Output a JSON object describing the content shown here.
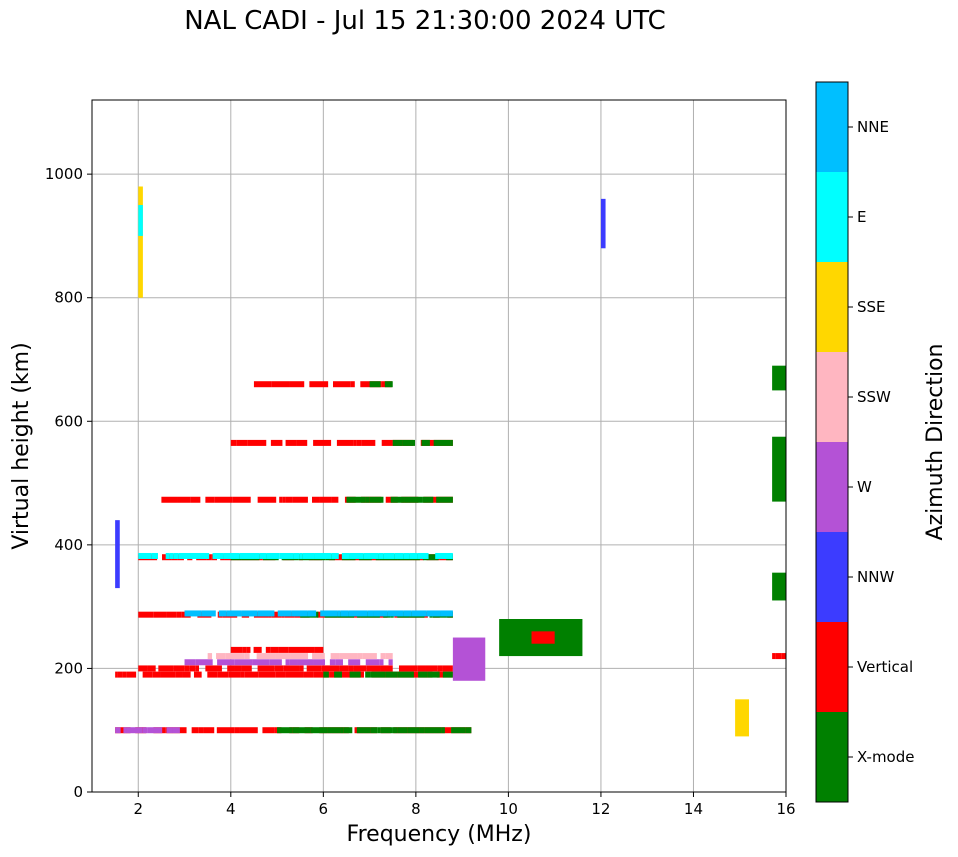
{
  "title": "NAL CADI - Jul 15 21:30:00 2024 UTC",
  "chart_data": {
    "type": "scatter",
    "title": "NAL CADI - Jul 15 21:30:00 2024 UTC",
    "xlabel": "Frequency (MHz)",
    "ylabel": "Virtual height (km)",
    "xlim": [
      1,
      16
    ],
    "ylim": [
      0,
      1120
    ],
    "xticks": [
      2,
      4,
      6,
      8,
      10,
      12,
      14,
      16
    ],
    "yticks": [
      0,
      200,
      400,
      600,
      800,
      1000
    ],
    "grid": true,
    "colorbar": {
      "label": "Azimuth Direction",
      "categories": [
        {
          "name": "X-mode",
          "color": "#008000"
        },
        {
          "name": "Vertical",
          "color": "#ff0000"
        },
        {
          "name": "NNW",
          "color": "#3c3cff"
        },
        {
          "name": "W",
          "color": "#b452d6"
        },
        {
          "name": "SSW",
          "color": "#ffb6c1"
        },
        {
          "name": "SSE",
          "color": "#ffd700"
        },
        {
          "name": "E",
          "color": "#00ffff"
        },
        {
          "name": "NNE",
          "color": "#00bfff"
        }
      ]
    },
    "segments": [
      {
        "x0": 1.5,
        "x1": 9.2,
        "y": 100,
        "cat": "Vertical"
      },
      {
        "x0": 5.0,
        "x1": 9.2,
        "y": 100,
        "cat": "X-mode"
      },
      {
        "x0": 1.5,
        "x1": 2.9,
        "y": 100,
        "cat": "W"
      },
      {
        "x0": 1.5,
        "x1": 8.8,
        "y": 190,
        "cat": "Vertical"
      },
      {
        "x0": 6.0,
        "x1": 8.8,
        "y": 190,
        "cat": "X-mode"
      },
      {
        "x0": 2.0,
        "x1": 8.8,
        "y": 200,
        "cat": "Vertical"
      },
      {
        "x0": 3.0,
        "x1": 7.5,
        "y": 210,
        "cat": "W"
      },
      {
        "x0": 3.5,
        "x1": 7.5,
        "y": 220,
        "cat": "SSW"
      },
      {
        "x0": 4.0,
        "x1": 6.0,
        "y": 230,
        "cat": "Vertical"
      },
      {
        "x0": 2.0,
        "x1": 8.8,
        "y": 287,
        "cat": "Vertical"
      },
      {
        "x0": 5.5,
        "x1": 8.8,
        "y": 287,
        "cat": "X-mode"
      },
      {
        "x0": 3.0,
        "x1": 8.8,
        "y": 289,
        "cat": "NNE"
      },
      {
        "x0": 2.0,
        "x1": 8.8,
        "y": 380,
        "cat": "Vertical"
      },
      {
        "x0": 4.0,
        "x1": 8.8,
        "y": 380,
        "cat": "X-mode"
      },
      {
        "x0": 2.0,
        "x1": 8.8,
        "y": 382,
        "cat": "E"
      },
      {
        "x0": 2.5,
        "x1": 8.8,
        "y": 473,
        "cat": "Vertical"
      },
      {
        "x0": 6.5,
        "x1": 8.8,
        "y": 473,
        "cat": "X-mode"
      },
      {
        "x0": 4.0,
        "x1": 8.8,
        "y": 565,
        "cat": "Vertical"
      },
      {
        "x0": 7.5,
        "x1": 8.8,
        "y": 565,
        "cat": "X-mode"
      },
      {
        "x0": 4.5,
        "x1": 7.5,
        "y": 660,
        "cat": "Vertical"
      },
      {
        "x0": 7.0,
        "x1": 7.5,
        "y": 660,
        "cat": "X-mode"
      },
      {
        "x0": 1.5,
        "x1": 1.6,
        "y": 440,
        "cat": "NNW",
        "vertical_to": 330
      },
      {
        "x0": 2.0,
        "x1": 2.1,
        "y": 980,
        "cat": "SSE",
        "vertical_to": 800
      },
      {
        "x0": 2.0,
        "x1": 2.1,
        "y": 950,
        "cat": "E",
        "vertical_to": 900
      },
      {
        "x0": 12.0,
        "x1": 12.1,
        "y": 960,
        "cat": "NNW",
        "vertical_to": 880
      },
      {
        "x0": 15.7,
        "x1": 16.0,
        "y": 690,
        "cat": "X-mode",
        "vertical_to": 650
      },
      {
        "x0": 15.7,
        "x1": 16.0,
        "y": 575,
        "cat": "X-mode",
        "vertical_to": 470
      },
      {
        "x0": 15.7,
        "x1": 16.0,
        "y": 355,
        "cat": "X-mode",
        "vertical_to": 310
      },
      {
        "x0": 15.7,
        "x1": 16.0,
        "y": 220,
        "cat": "Vertical"
      },
      {
        "x0": 8.8,
        "x1": 9.5,
        "y": 250,
        "cat": "W",
        "vertical_to": 180
      },
      {
        "x0": 9.8,
        "x1": 11.6,
        "y": 280,
        "cat": "X-mode",
        "vertical_to": 220
      },
      {
        "x0": 10.5,
        "x1": 11.0,
        "y": 260,
        "cat": "Vertical",
        "vertical_to": 240
      },
      {
        "x0": 14.9,
        "x1": 15.2,
        "y": 150,
        "cat": "SSE",
        "vertical_to": 90
      }
    ]
  }
}
